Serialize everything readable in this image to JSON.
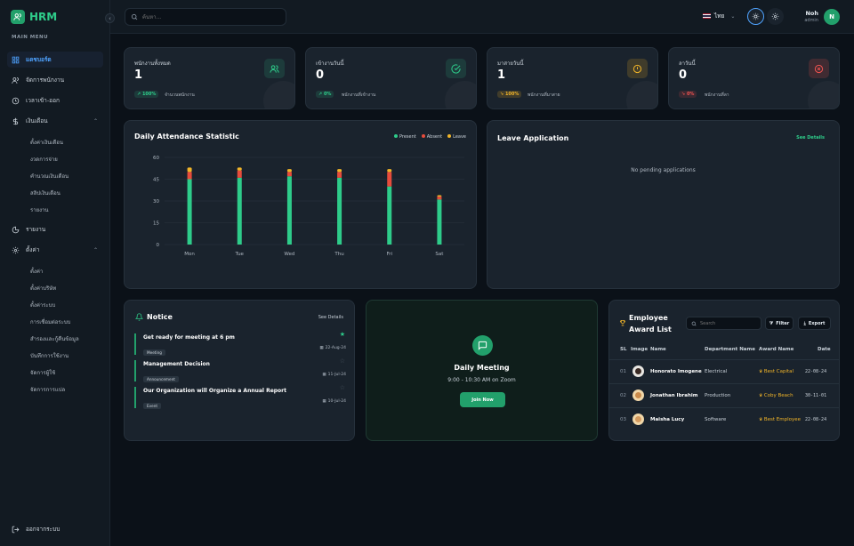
{
  "app": {
    "name": "HRM"
  },
  "sidebar": {
    "menu_title": "MAIN MENU",
    "items": [
      {
        "label": "แดชบอร์ด",
        "icon": "dashboard-icon",
        "active": true
      },
      {
        "label": "จัดการพนักงาน",
        "icon": "users-icon"
      },
      {
        "label": "เวลาเข้า-ออก",
        "icon": "clock-icon"
      },
      {
        "label": "เงินเดือน",
        "icon": "dollar-icon",
        "expanded": true,
        "children": [
          "ตั้งค่าเงินเดือน",
          "งวดการจ่าย",
          "คำนวณเงินเดือน",
          "สลิปเงินเดือน",
          "รายงาน"
        ]
      },
      {
        "label": "รายงาน",
        "icon": "pie-chart-icon"
      },
      {
        "label": "ตั้งค่า",
        "icon": "gear-icon",
        "expanded": true,
        "children": [
          "ตั้งค่า",
          "ตั้งค่าบริษัท",
          "ตั้งค่าระบบ",
          "การเชื่อมต่อระบบ",
          "สำรองและกู้คืนข้อมูล",
          "บันทึกการใช้งาน",
          "จัดการผู้ใช้",
          "จัดการการแปล"
        ]
      }
    ],
    "logout": "ออกจากระบบ"
  },
  "topbar": {
    "search_placeholder": "ค้นหา...",
    "language": "ไทย",
    "user": {
      "name": "Noh",
      "role": "admin",
      "initial": "N"
    }
  },
  "stats": [
    {
      "label": "พนักงานทั้งหมด",
      "value": "1",
      "badge": "100%",
      "badge_color": "#2ecc8a",
      "note": "จำนวนพนักงาน",
      "icon": "users-icon",
      "color": "#2ecc8a"
    },
    {
      "label": "เข้างานวันนี้",
      "value": "0",
      "badge": "0%",
      "badge_color": "#2ecc8a",
      "note": "พนักงานที่เข้างาน",
      "icon": "check-circle-icon",
      "color": "#2ecc8a"
    },
    {
      "label": "มาสายวันนี้",
      "value": "1",
      "badge": "100%",
      "badge_color": "#f0b429",
      "note": "พนักงานที่มาสาย",
      "icon": "alert-circle-icon",
      "color": "#f0b429"
    },
    {
      "label": "ลาวันนี้",
      "value": "0",
      "badge": "0%",
      "badge_color": "#ef5350",
      "note": "พนักงานที่ลา",
      "icon": "x-circle-icon",
      "color": "#ef5350"
    }
  ],
  "attendance": {
    "title": "Daily Attendance Statistic",
    "legend": [
      "Present",
      "Absent",
      "Leave"
    ]
  },
  "chart_data": {
    "type": "bar",
    "stacked": true,
    "title": "Daily Attendance Statistic",
    "categories": [
      "Mon",
      "Tue",
      "Wed",
      "Thu",
      "Fri",
      "Sat"
    ],
    "series": [
      {
        "name": "Present",
        "color": "#2ecc8a",
        "values": [
          45,
          46,
          47,
          46,
          40,
          31
        ]
      },
      {
        "name": "Absent",
        "color": "#e74c3c",
        "values": [
          5,
          5,
          3,
          4,
          10,
          2
        ]
      },
      {
        "name": "Leave",
        "color": "#f0b429",
        "values": [
          3,
          2,
          2,
          2,
          2,
          1
        ]
      }
    ],
    "yticks": [
      "0",
      "15",
      "30",
      "45",
      "60"
    ],
    "ylim": [
      0,
      60
    ],
    "grid": true,
    "legend_position": "top-right"
  },
  "leave": {
    "title": "Leave Application",
    "see_details": "See Details",
    "empty": "No pending applications"
  },
  "notice": {
    "title": "Notice",
    "see_details": "See Details",
    "items": [
      {
        "title": "Get ready for meeting at 6 pm",
        "tag": "Meeting",
        "date": "22-Aug-24",
        "starred": true
      },
      {
        "title": "Management Decision",
        "tag": "Announcement",
        "date": "11-Jul-24",
        "starred": false
      },
      {
        "title": "Our Organization will Organize a Annual Report",
        "tag": "Event",
        "date": "10-Jul-24",
        "starred": false
      }
    ]
  },
  "meeting": {
    "title": "Daily Meeting",
    "time": "9:00 - 10:30 AM on Zoom",
    "button": "Join Now"
  },
  "awards": {
    "title_line1": "Employee",
    "title_line2": "Award List",
    "search_placeholder": "Search",
    "filter": "Filter",
    "export": "Export",
    "headers": [
      "SL",
      "Image",
      "Name",
      "Department Name",
      "Award Name",
      "Date"
    ],
    "rows": [
      {
        "sl": "01",
        "name": "Honorato Imogene",
        "dept": "Electrical",
        "award": "Best Capital",
        "date": "22-08-24"
      },
      {
        "sl": "02",
        "name": "Jonathan Ibrahim",
        "dept": "Production",
        "award": "Coby Beach",
        "date": "30-11-01"
      },
      {
        "sl": "03",
        "name": "Maisha Lucy",
        "dept": "Software",
        "award": "Best Employee",
        "date": "22-08-24"
      }
    ]
  }
}
